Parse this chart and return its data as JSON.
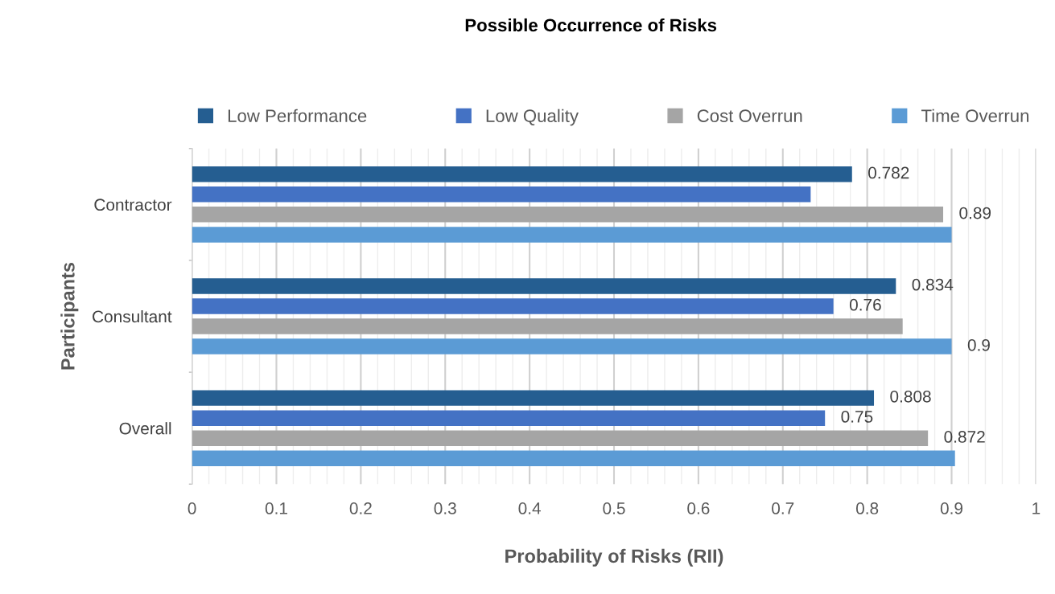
{
  "chart_data": {
    "type": "bar",
    "orientation": "horizontal",
    "title": "Possible Occurrence of Risks",
    "xlabel": "Probability of Risks (RII)",
    "ylabel": "Participants",
    "categories": [
      "Contractor",
      "Consultant",
      "Overall"
    ],
    "series": [
      {
        "name": "Low Performance",
        "color": "#255e91",
        "values": [
          0.782,
          0.834,
          0.808
        ],
        "value_labels": [
          "0.782",
          "0.834",
          "0.808"
        ]
      },
      {
        "name": "Low Quality",
        "color": "#4472c4",
        "values": [
          0.733,
          0.76,
          0.75
        ],
        "value_labels": [
          null,
          "0.76",
          "0.75"
        ]
      },
      {
        "name": "Cost Overrun",
        "color": "#a5a5a5",
        "values": [
          0.89,
          0.842,
          0.872
        ],
        "value_labels": [
          "0.89",
          null,
          "0.872"
        ]
      },
      {
        "name": "Time Overrun",
        "color": "#5b9bd5",
        "values": [
          0.9,
          0.9,
          0.904
        ],
        "value_labels": [
          null,
          "0.9",
          null
        ]
      }
    ],
    "xlim": [
      0,
      1
    ],
    "xticks": [
      0,
      0.1,
      0.2,
      0.3,
      0.4,
      0.5,
      0.6,
      0.7,
      0.8,
      0.9,
      1
    ],
    "grid": "x",
    "legend": "top"
  }
}
